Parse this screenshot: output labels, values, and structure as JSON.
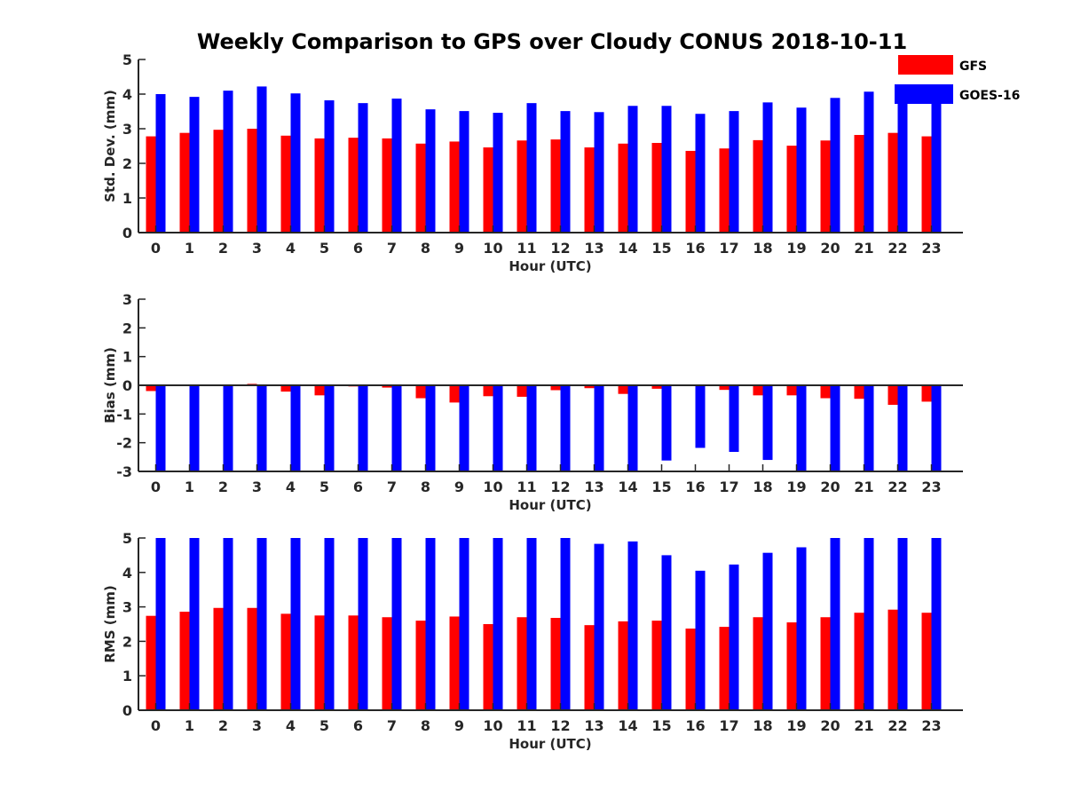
{
  "chart_data": {
    "title": "Weekly Comparison to GPS over Cloudy CONUS 2018-10-11",
    "legend": {
      "placement": "top-right",
      "entries": [
        {
          "name": "GFS",
          "color": "#ff0000"
        },
        {
          "name": "GOES-16",
          "color": "#0000ff"
        }
      ]
    },
    "panels": [
      {
        "id": "std",
        "type": "bar",
        "ylabel": "Std. Dev. (mm)",
        "xlabel": "Hour (UTC)",
        "ylim": [
          0,
          5
        ],
        "yticks": [
          0,
          1,
          2,
          3,
          4,
          5
        ],
        "categories": [
          "0",
          "1",
          "2",
          "3",
          "4",
          "5",
          "6",
          "7",
          "8",
          "9",
          "10",
          "11",
          "12",
          "13",
          "14",
          "15",
          "16",
          "17",
          "18",
          "19",
          "20",
          "21",
          "22",
          "23"
        ],
        "series": [
          {
            "name": "GFS",
            "color": "#ff0000",
            "values": [
              2.78,
              2.88,
              2.97,
              3.0,
              2.8,
              2.72,
              2.74,
              2.72,
              2.57,
              2.63,
              2.46,
              2.66,
              2.69,
              2.46,
              2.57,
              2.59,
              2.36,
              2.43,
              2.67,
              2.51,
              2.66,
              2.82,
              2.88,
              2.78
            ]
          },
          {
            "name": "GOES-16",
            "color": "#0000ff",
            "values": [
              4.0,
              3.92,
              4.1,
              4.22,
              4.02,
              3.82,
              3.74,
              3.87,
              3.56,
              3.51,
              3.46,
              3.74,
              3.51,
              3.48,
              3.66,
              3.66,
              3.43,
              3.51,
              3.76,
              3.61,
              3.89,
              4.07,
              3.97,
              3.8
            ]
          }
        ]
      },
      {
        "id": "bias",
        "type": "bar",
        "ylabel": "Bias (mm)",
        "xlabel": "Hour (UTC)",
        "ylim": [
          -3,
          3
        ],
        "yticks": [
          -3,
          -2,
          -1,
          0,
          1,
          2,
          3
        ],
        "categories": [
          "0",
          "1",
          "2",
          "3",
          "4",
          "5",
          "6",
          "7",
          "8",
          "9",
          "10",
          "11",
          "12",
          "13",
          "14",
          "15",
          "16",
          "17",
          "18",
          "19",
          "20",
          "21",
          "22",
          "23"
        ],
        "series": [
          {
            "name": "GFS",
            "color": "#ff0000",
            "values": [
              -0.2,
              -0.02,
              -0.02,
              0.05,
              -0.22,
              -0.35,
              -0.04,
              -0.08,
              -0.45,
              -0.6,
              -0.38,
              -0.4,
              -0.17,
              -0.1,
              -0.3,
              -0.12,
              0.0,
              -0.16,
              -0.35,
              -0.35,
              -0.45,
              -0.47,
              -0.68,
              -0.57
            ]
          },
          {
            "name": "GOES-16",
            "color": "#0000ff",
            "values": [
              -3.0,
              -3.0,
              -3.0,
              -3.0,
              -3.0,
              -3.0,
              -3.0,
              -3.0,
              -3.0,
              -3.0,
              -3.0,
              -3.0,
              -3.0,
              -3.0,
              -3.0,
              -2.62,
              -2.18,
              -2.32,
              -2.6,
              -3.0,
              -3.0,
              -3.0,
              -3.0,
              -3.0
            ]
          }
        ]
      },
      {
        "id": "rms",
        "type": "bar",
        "ylabel": "RMS (mm)",
        "xlabel": "Hour (UTC)",
        "ylim": [
          0,
          5
        ],
        "yticks": [
          0,
          1,
          2,
          3,
          4,
          5
        ],
        "categories": [
          "0",
          "1",
          "2",
          "3",
          "4",
          "5",
          "6",
          "7",
          "8",
          "9",
          "10",
          "11",
          "12",
          "13",
          "14",
          "15",
          "16",
          "17",
          "18",
          "19",
          "20",
          "21",
          "22",
          "23"
        ],
        "series": [
          {
            "name": "GFS",
            "color": "#ff0000",
            "values": [
              2.74,
              2.86,
              2.97,
              2.97,
              2.8,
              2.75,
              2.75,
              2.7,
              2.6,
              2.72,
              2.5,
              2.7,
              2.68,
              2.47,
              2.58,
              2.6,
              2.37,
              2.42,
              2.7,
              2.55,
              2.7,
              2.83,
              2.92,
              2.83
            ]
          },
          {
            "name": "GOES-16",
            "color": "#0000ff",
            "values": [
              5.0,
              5.0,
              5.0,
              5.0,
              5.0,
              5.0,
              5.0,
              5.0,
              5.0,
              5.0,
              5.0,
              5.0,
              5.0,
              4.83,
              4.9,
              4.5,
              4.05,
              4.23,
              4.57,
              4.73,
              5.0,
              5.0,
              5.0,
              5.0
            ]
          }
        ]
      }
    ]
  }
}
